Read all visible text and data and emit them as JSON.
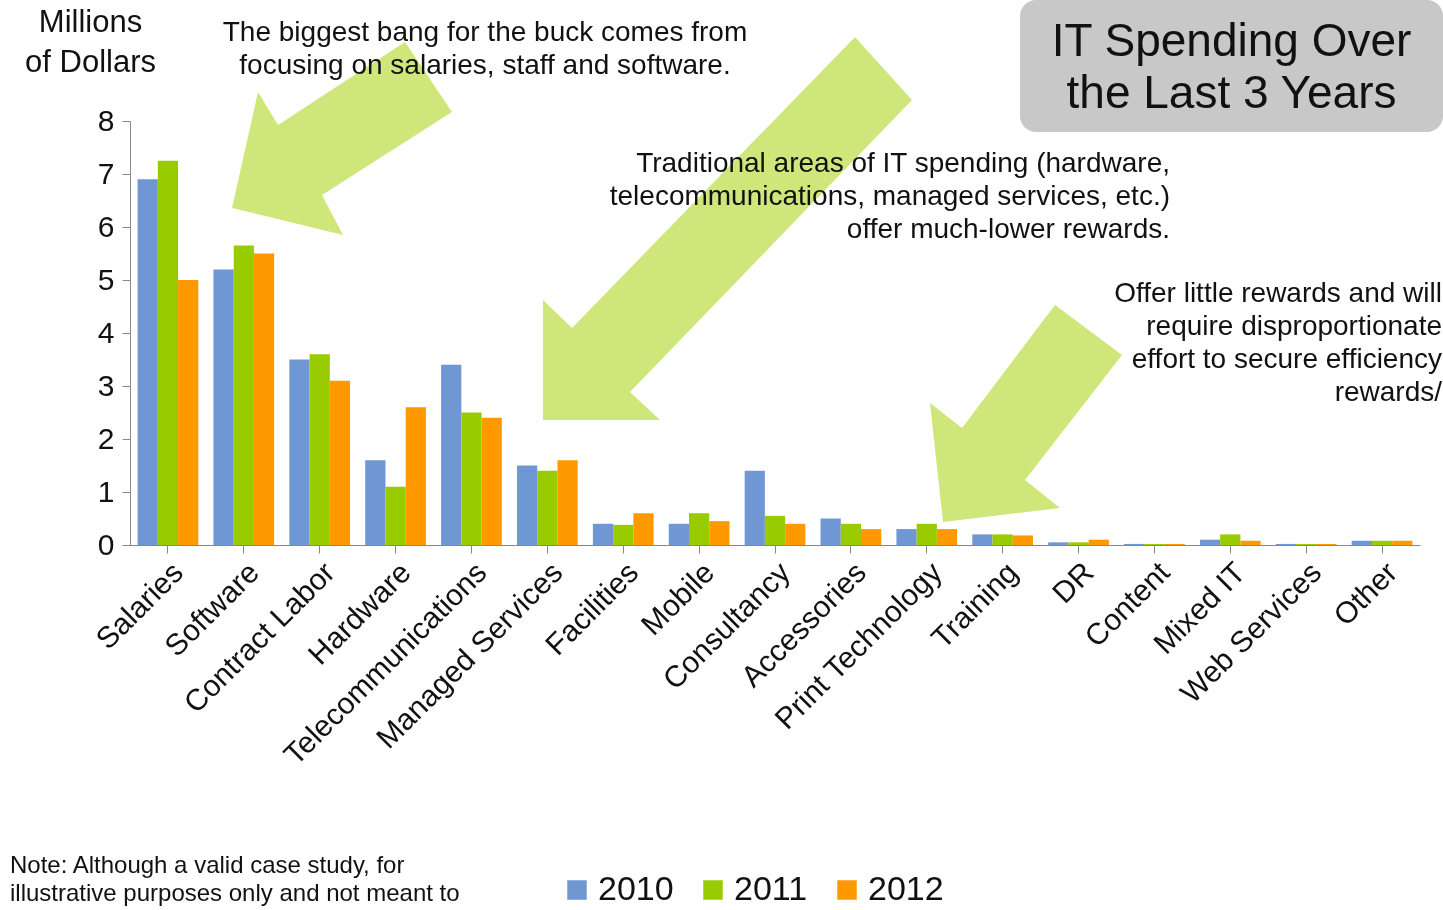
{
  "chart_data": {
    "type": "bar",
    "title": "IT Spending Over the Last 3 Years",
    "ylabel": "Millions of Dollars",
    "annotations": [
      "The biggest bang for the buck comes from focusing on salaries, staff and software.",
      "Traditional areas of IT spending (hardware, telecommunications, managed services, etc.) offer much-lower rewards.",
      "Offer little rewards and will require disproportionate effort to secure efficiency rewards/",
      "Note: Although a valid case study, for illustrative purposes only and not meant to"
    ],
    "categories": [
      "Salaries",
      "Software",
      "Contract Labor",
      "Hardware",
      "Telecommunications",
      "Managed Services",
      "Facilities",
      "Mobile",
      "Consultancy",
      "Accessories",
      "Print Technology",
      "Training",
      "DR",
      "Content",
      "Mixed IT",
      "Web Services",
      "Other"
    ],
    "series": [
      {
        "name": "2010",
        "color": "#6e97d4",
        "values": [
          6.9,
          5.2,
          3.5,
          1.6,
          3.4,
          1.5,
          0.4,
          0.4,
          1.4,
          0.5,
          0.3,
          0.2,
          0.05,
          0.02,
          0.1,
          0.02,
          0.08
        ]
      },
      {
        "name": "2011",
        "color": "#99cc00",
        "values": [
          7.25,
          5.65,
          3.6,
          1.1,
          2.5,
          1.4,
          0.38,
          0.6,
          0.55,
          0.4,
          0.4,
          0.2,
          0.05,
          0.02,
          0.2,
          0.02,
          0.08
        ]
      },
      {
        "name": "2012",
        "color": "#ff9900",
        "values": [
          5.0,
          5.5,
          3.1,
          2.6,
          2.4,
          1.6,
          0.6,
          0.45,
          0.4,
          0.3,
          0.3,
          0.18,
          0.1,
          0.02,
          0.08,
          0.02,
          0.08
        ]
      }
    ],
    "ylim": [
      0,
      8
    ],
    "yticks": [
      0,
      1,
      2,
      3,
      4,
      5,
      6,
      7,
      8
    ],
    "legend": "bottom"
  }
}
